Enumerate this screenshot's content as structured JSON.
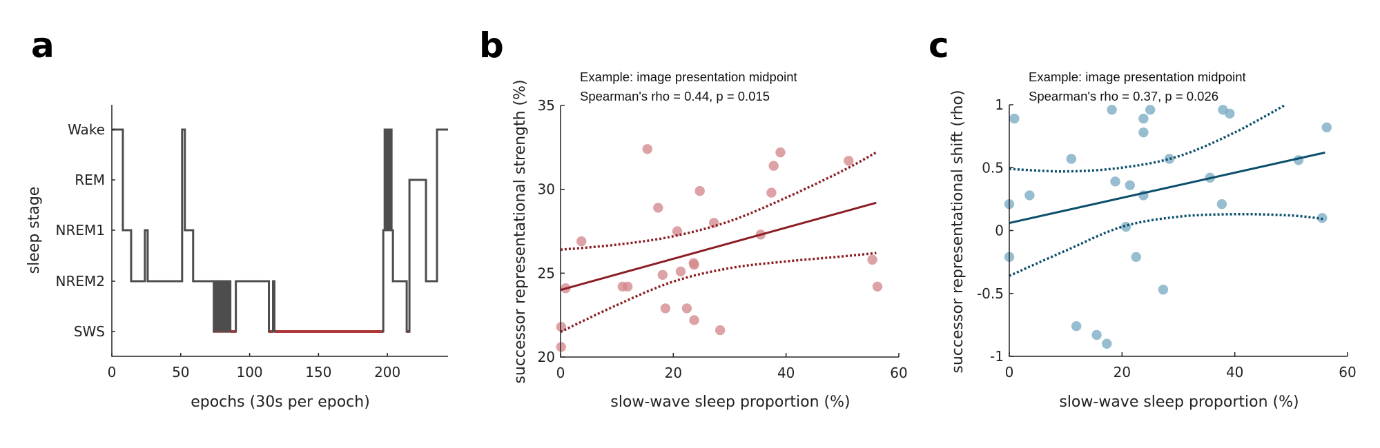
{
  "chart_data": [
    {
      "panel": "a",
      "type": "line",
      "subtype": "hypnogram-step",
      "title": "",
      "xlabel": "epochs (30s per epoch)",
      "ylabel": "sleep stage",
      "xlim": [
        0,
        244
      ],
      "xticks": [
        0,
        50,
        100,
        150,
        200
      ],
      "stages": [
        "SWS",
        "NREM2",
        "NREM1",
        "REM",
        "Wake"
      ],
      "colors": {
        "line": "#4D4D4D",
        "sws_highlight": "#B03A3A"
      },
      "segments": [
        {
          "start": 0,
          "end": 8,
          "stage": "Wake"
        },
        {
          "start": 8,
          "end": 14,
          "stage": "NREM1"
        },
        {
          "start": 14,
          "end": 24,
          "stage": "NREM2"
        },
        {
          "start": 24,
          "end": 26,
          "stage": "NREM1"
        },
        {
          "start": 26,
          "end": 51,
          "stage": "NREM2"
        },
        {
          "start": 51,
          "end": 53,
          "stage": "Wake"
        },
        {
          "start": 53,
          "end": 59,
          "stage": "NREM1"
        },
        {
          "start": 59,
          "end": 74,
          "stage": "NREM2"
        },
        {
          "start": 74,
          "end": 75,
          "stage": "SWS"
        },
        {
          "start": 75,
          "end": 76,
          "stage": "NREM2"
        },
        {
          "start": 76,
          "end": 77,
          "stage": "SWS"
        },
        {
          "start": 77,
          "end": 78,
          "stage": "NREM2"
        },
        {
          "start": 78,
          "end": 79,
          "stage": "SWS"
        },
        {
          "start": 79,
          "end": 80,
          "stage": "NREM2"
        },
        {
          "start": 80,
          "end": 81,
          "stage": "SWS"
        },
        {
          "start": 81,
          "end": 82,
          "stage": "NREM2"
        },
        {
          "start": 82,
          "end": 83,
          "stage": "SWS"
        },
        {
          "start": 83,
          "end": 84,
          "stage": "NREM2"
        },
        {
          "start": 84,
          "end": 85,
          "stage": "SWS"
        },
        {
          "start": 85,
          "end": 86,
          "stage": "NREM2"
        },
        {
          "start": 86,
          "end": 90,
          "stage": "SWS"
        },
        {
          "start": 90,
          "end": 114,
          "stage": "NREM2"
        },
        {
          "start": 114,
          "end": 117,
          "stage": "SWS"
        },
        {
          "start": 117,
          "end": 118,
          "stage": "NREM2"
        },
        {
          "start": 118,
          "end": 197,
          "stage": "SWS"
        },
        {
          "start": 197,
          "end": 198,
          "stage": "NREM1"
        },
        {
          "start": 198,
          "end": 199,
          "stage": "Wake"
        },
        {
          "start": 199,
          "end": 200,
          "stage": "NREM1"
        },
        {
          "start": 200,
          "end": 201,
          "stage": "Wake"
        },
        {
          "start": 201,
          "end": 202,
          "stage": "NREM1"
        },
        {
          "start": 202,
          "end": 203,
          "stage": "Wake"
        },
        {
          "start": 203,
          "end": 204,
          "stage": "NREM1"
        },
        {
          "start": 204,
          "end": 214,
          "stage": "NREM2"
        },
        {
          "start": 214,
          "end": 216,
          "stage": "SWS"
        },
        {
          "start": 216,
          "end": 228,
          "stage": "REM"
        },
        {
          "start": 228,
          "end": 236,
          "stage": "NREM2"
        },
        {
          "start": 236,
          "end": 244,
          "stage": "Wake"
        }
      ]
    },
    {
      "panel": "b",
      "type": "scatter",
      "annotation": [
        "Example: image presentation midpoint",
        "Spearman's rho = 0.44, p = 0.015"
      ],
      "xlabel": "slow-wave sleep proportion (%)",
      "ylabel": "successor representational strength (%)",
      "xlim": [
        0,
        60
      ],
      "ylim": [
        20,
        35
      ],
      "xticks": [
        0,
        20,
        40,
        60
      ],
      "yticks": [
        20,
        25,
        30,
        35
      ],
      "colors": {
        "marker": "#D4888C",
        "line": "#8B1E24"
      },
      "points": [
        [
          15.4,
          32.4
        ],
        [
          24.7,
          29.9
        ],
        [
          17.3,
          28.9
        ],
        [
          27.2,
          28.0
        ],
        [
          20.7,
          27.5
        ],
        [
          3.7,
          26.9
        ],
        [
          23.6,
          25.6
        ],
        [
          23.7,
          25.5
        ],
        [
          18.1,
          24.9
        ],
        [
          21.3,
          25.1
        ],
        [
          11.0,
          24.2
        ],
        [
          11.9,
          24.2
        ],
        [
          0.9,
          24.1
        ],
        [
          18.6,
          22.9
        ],
        [
          22.4,
          22.9
        ],
        [
          23.7,
          22.2
        ],
        [
          28.3,
          21.6
        ],
        [
          0.1,
          21.8
        ],
        [
          0.1,
          20.6
        ],
        [
          39.0,
          32.2
        ],
        [
          37.8,
          31.4
        ],
        [
          37.4,
          29.8
        ],
        [
          51.1,
          31.7
        ],
        [
          35.5,
          27.3
        ],
        [
          55.3,
          25.8
        ],
        [
          56.2,
          24.2
        ]
      ],
      "fit": {
        "x": [
          0,
          56
        ],
        "y": [
          24.0,
          29.2
        ]
      },
      "ci_upper": {
        "x": [
          0,
          10,
          20,
          30,
          40,
          50,
          56
        ],
        "y": [
          26.4,
          26.7,
          27.2,
          28.1,
          29.5,
          31.1,
          32.2
        ]
      },
      "ci_lower": {
        "x": [
          0,
          10,
          20,
          30,
          40,
          50,
          56
        ],
        "y": [
          21.5,
          23.1,
          24.5,
          25.3,
          25.7,
          26.0,
          26.2
        ]
      }
    },
    {
      "panel": "c",
      "type": "scatter",
      "annotation": [
        "Example: image presentation midpoint",
        "Spearman's rho = 0.37, p = 0.026"
      ],
      "xlabel": "slow-wave sleep proportion (%)",
      "ylabel": "successor representational shift (rho)",
      "xlim": [
        0,
        60
      ],
      "ylim": [
        -1,
        1
      ],
      "xticks": [
        0,
        20,
        40,
        60
      ],
      "yticks": [
        -1,
        -0.5,
        0,
        0.5,
        1
      ],
      "colors": {
        "marker": "#7AAAC3",
        "line": "#0B4F6C"
      },
      "points": [
        [
          0.9,
          0.89
        ],
        [
          18.2,
          0.96
        ],
        [
          23.8,
          0.89
        ],
        [
          25.0,
          0.96
        ],
        [
          23.8,
          0.78
        ],
        [
          11.0,
          0.57
        ],
        [
          28.4,
          0.57
        ],
        [
          18.8,
          0.39
        ],
        [
          21.4,
          0.36
        ],
        [
          3.6,
          0.28
        ],
        [
          23.8,
          0.28
        ],
        [
          0.0,
          0.21
        ],
        [
          20.7,
          0.03
        ],
        [
          0.0,
          -0.21
        ],
        [
          22.5,
          -0.21
        ],
        [
          27.3,
          -0.47
        ],
        [
          11.9,
          -0.76
        ],
        [
          15.5,
          -0.83
        ],
        [
          17.3,
          -0.9
        ],
        [
          37.9,
          0.96
        ],
        [
          39.1,
          0.93
        ],
        [
          56.3,
          0.82
        ],
        [
          51.3,
          0.56
        ],
        [
          35.6,
          0.42
        ],
        [
          37.7,
          0.21
        ],
        [
          55.5,
          0.1
        ]
      ],
      "fit": {
        "x": [
          0,
          56
        ],
        "y": [
          0.06,
          0.62
        ]
      },
      "ci_upper": {
        "x": [
          0,
          10,
          20,
          30,
          40,
          49
        ],
        "y": [
          0.49,
          0.47,
          0.5,
          0.59,
          0.78,
          1.0
        ]
      },
      "ci_lower": {
        "x": [
          0,
          10,
          20,
          30,
          40,
          50,
          56
        ],
        "y": [
          -0.36,
          -0.16,
          0.03,
          0.11,
          0.13,
          0.12,
          0.09
        ]
      }
    }
  ],
  "panel_labels": [
    "a",
    "b",
    "c"
  ]
}
